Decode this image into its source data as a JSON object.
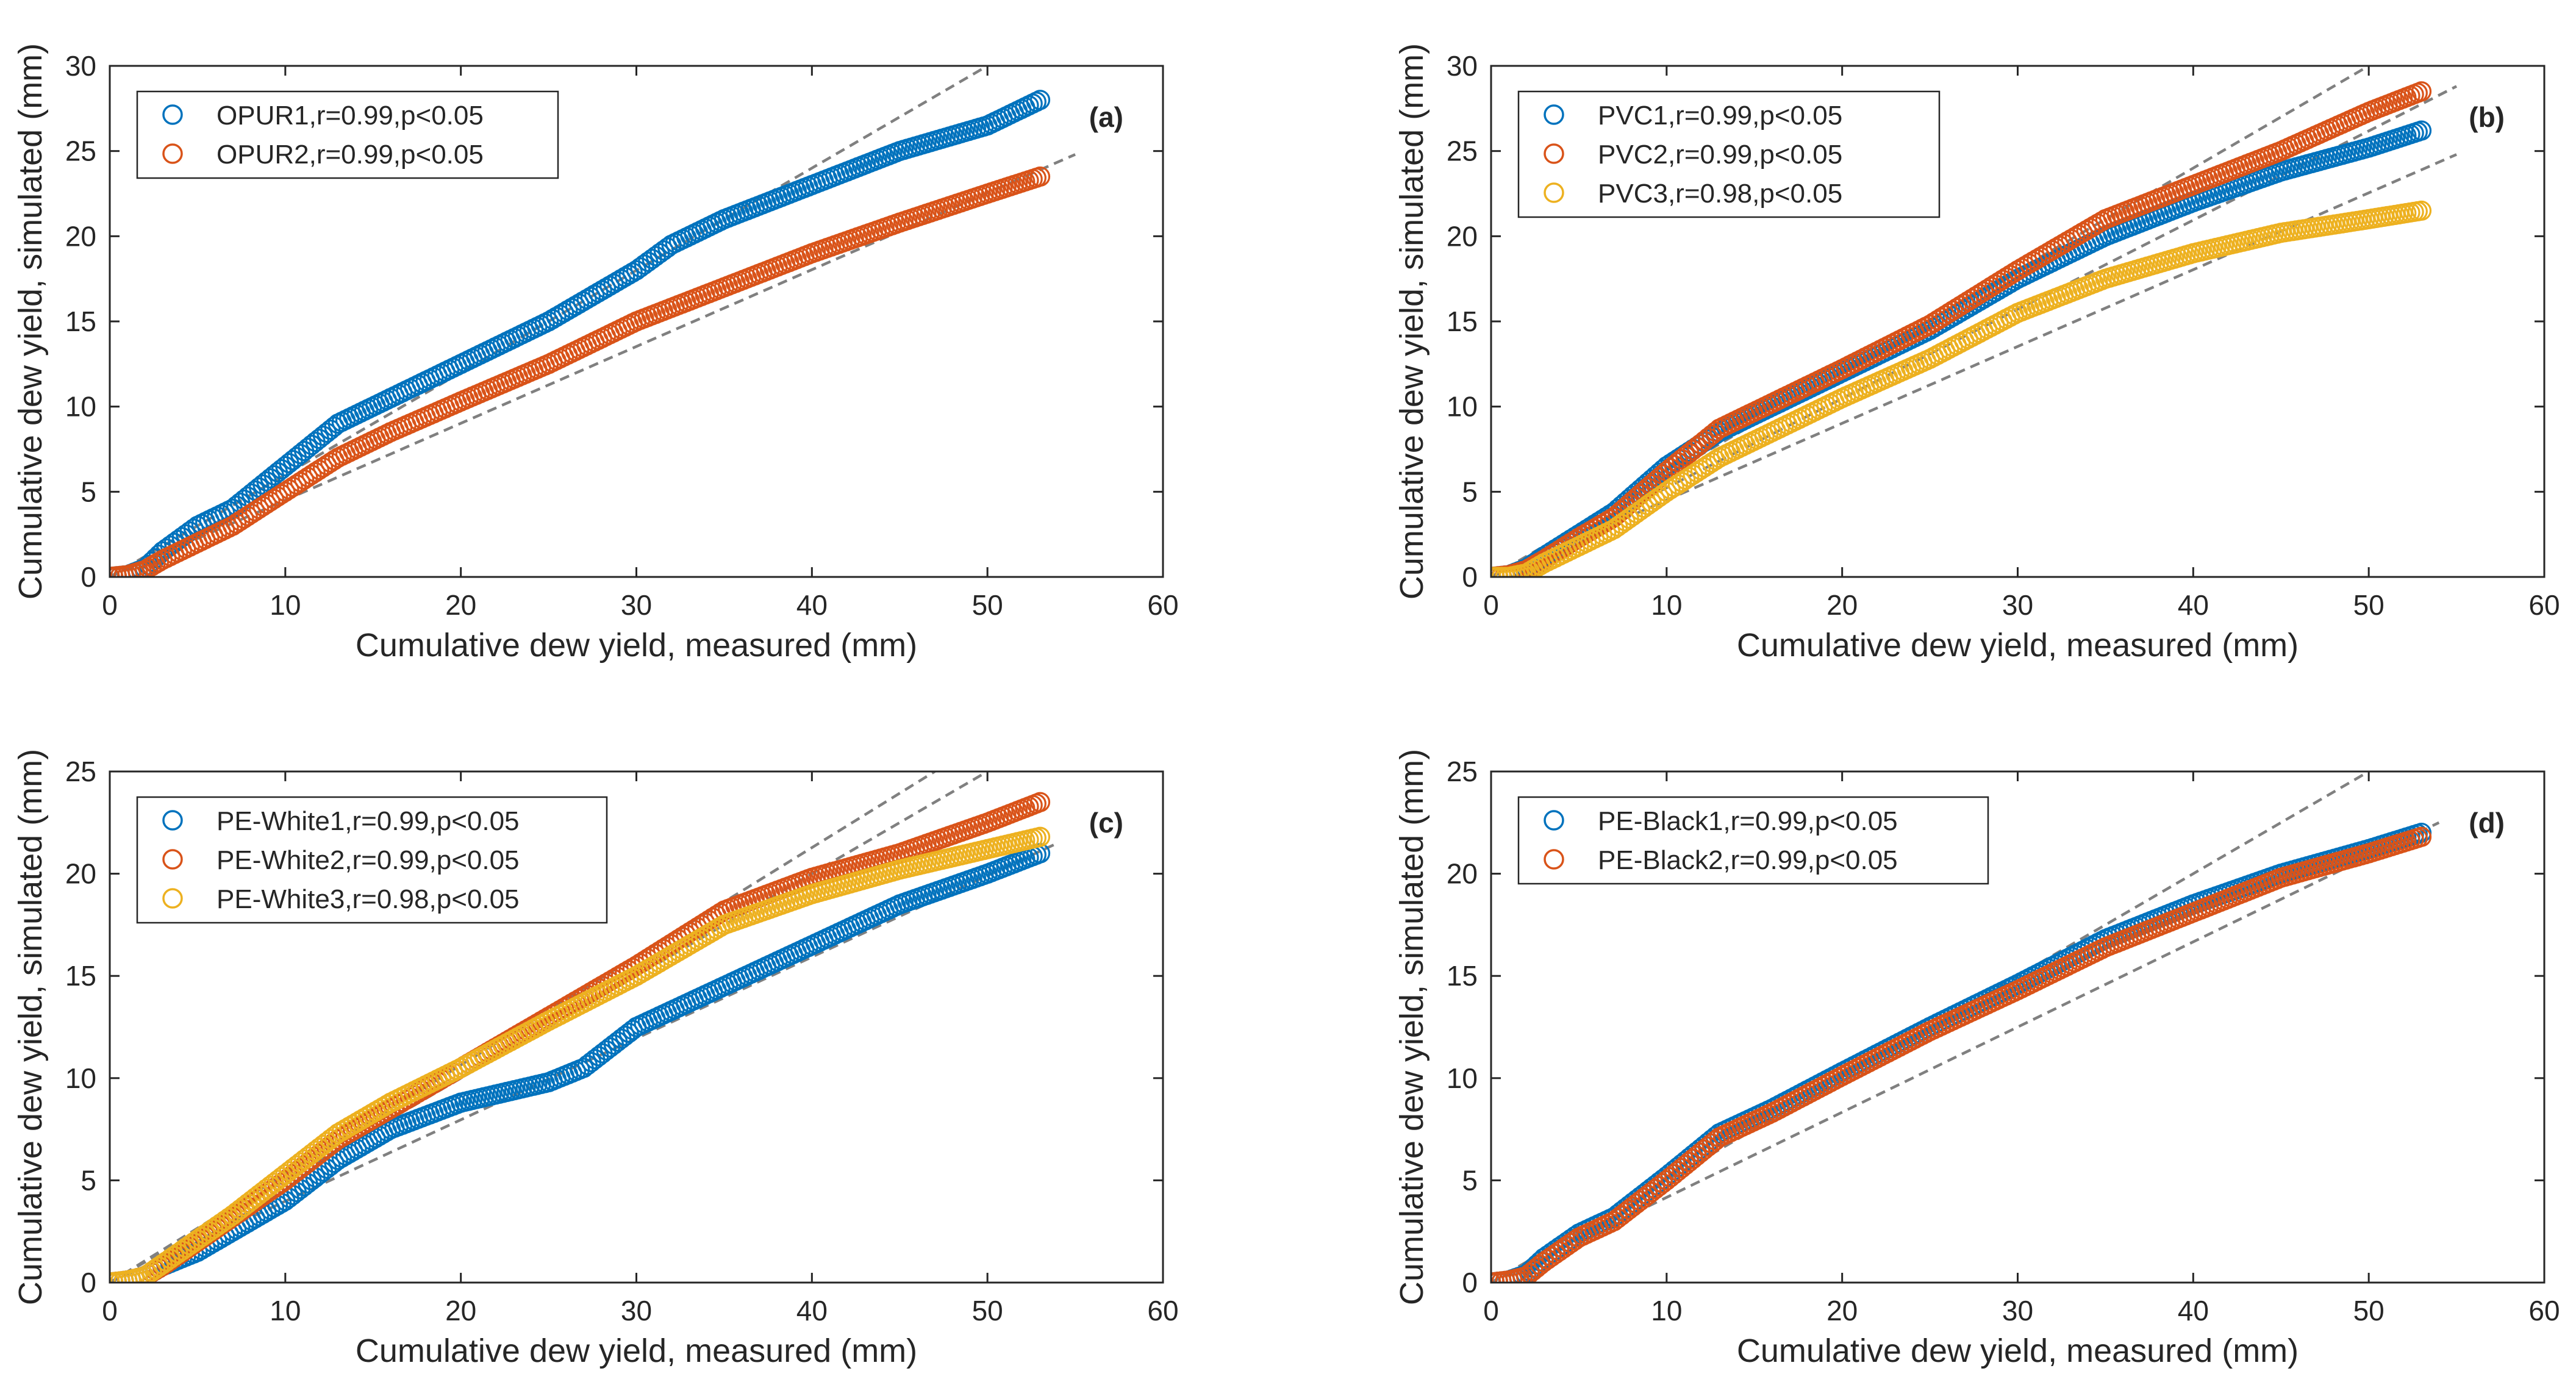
{
  "figure": {
    "colors": {
      "blue": "#0072BD",
      "orange": "#D95319",
      "yellow": "#EDB120",
      "reference_line": "#808080",
      "axis": "#262626"
    }
  },
  "chart_data": [
    {
      "type": "scatter",
      "panel_label": "(a)",
      "xlabel": "Cumulative dew yield, measured (mm)",
      "ylabel": "Cumulative dew yield, simulated (mm)",
      "xlim": [
        0,
        60
      ],
      "ylim": [
        0,
        30
      ],
      "xticks": [
        0,
        10,
        20,
        30,
        40,
        50,
        60
      ],
      "yticks": [
        0,
        5,
        10,
        15,
        20,
        25,
        30
      ],
      "grid": false,
      "legend_position": "top-left",
      "reference_lines": [
        {
          "style": "dashed",
          "x": [
            0,
            50
          ],
          "y": [
            0,
            30
          ]
        },
        {
          "style": "dashed",
          "x": [
            0,
            55
          ],
          "y": [
            0,
            24.8
          ]
        }
      ],
      "series": [
        {
          "name": "OPUR1,r=0.99,p<0.05",
          "color": "#0072BD",
          "x": [
            0,
            1,
            2,
            3,
            5,
            7,
            10,
            13,
            16,
            20,
            25,
            30,
            32,
            35,
            40,
            42,
            45,
            50,
            53
          ],
          "y": [
            0,
            0.1,
            0.5,
            1.5,
            3,
            4,
            6.5,
            9,
            10.5,
            12.5,
            15,
            18,
            19.5,
            21,
            23,
            23.8,
            25,
            26.5,
            28
          ]
        },
        {
          "name": "OPUR2,r=0.99,p<0.05",
          "color": "#D95319",
          "x": [
            0,
            1,
            2,
            3,
            5,
            7,
            10,
            13,
            16,
            20,
            25,
            30,
            35,
            40,
            45,
            50,
            53
          ],
          "y": [
            0,
            0.1,
            0.4,
            1,
            2,
            3,
            5,
            7,
            8.5,
            10.3,
            12.5,
            15,
            17,
            19,
            20.8,
            22.5,
            23.5
          ]
        }
      ]
    },
    {
      "type": "scatter",
      "panel_label": "(b)",
      "xlabel": "Cumulative dew yield, measured (mm)",
      "ylabel": "Cumulative dew yield, simulated (mm)",
      "xlim": [
        0,
        60
      ],
      "ylim": [
        0,
        30
      ],
      "xticks": [
        0,
        10,
        20,
        30,
        40,
        50,
        60
      ],
      "yticks": [
        0,
        5,
        10,
        15,
        20,
        25,
        30
      ],
      "grid": false,
      "legend_position": "top-left",
      "reference_lines": [
        {
          "style": "dashed",
          "x": [
            0,
            50
          ],
          "y": [
            0,
            30
          ]
        },
        {
          "style": "dashed",
          "x": [
            0,
            55
          ],
          "y": [
            0,
            24.8
          ]
        },
        {
          "style": "dashed",
          "x": [
            0,
            55
          ],
          "y": [
            0,
            28.8
          ]
        }
      ],
      "series": [
        {
          "name": "PVC1,r=0.99,p<0.05",
          "color": "#0072BD",
          "x": [
            0,
            1,
            2,
            3,
            5,
            7,
            10,
            13,
            16,
            20,
            25,
            30,
            35,
            40,
            45,
            50,
            53
          ],
          "y": [
            0,
            0.1,
            0.5,
            1.2,
            2.5,
            3.8,
            6.5,
            8.5,
            10,
            12,
            14.5,
            17.5,
            20,
            22,
            23.8,
            25.2,
            26.2
          ]
        },
        {
          "name": "PVC2,r=0.99,p<0.05",
          "color": "#D95319",
          "x": [
            0,
            1,
            2,
            3,
            5,
            7,
            10,
            13,
            16,
            20,
            25,
            30,
            35,
            40,
            45,
            50,
            53
          ],
          "y": [
            0,
            0.1,
            0.4,
            1,
            2.3,
            3.5,
            6.2,
            8.7,
            10.2,
            12.2,
            14.8,
            18,
            21,
            23,
            25,
            27.3,
            28.5
          ]
        },
        {
          "name": "PVC3,r=0.98,p<0.05",
          "color": "#EDB120",
          "x": [
            0,
            1,
            2,
            3,
            5,
            7,
            10,
            13,
            16,
            20,
            25,
            30,
            35,
            40,
            45,
            50,
            53
          ],
          "y": [
            0,
            0,
            0.2,
            0.8,
            1.8,
            2.8,
            5,
            7,
            8.5,
            10.5,
            12.8,
            15.5,
            17.5,
            19,
            20.2,
            21,
            21.5
          ]
        }
      ]
    },
    {
      "type": "scatter",
      "panel_label": "(c)",
      "xlabel": "Cumulative dew yield, measured (mm)",
      "ylabel": "Cumulative dew yield, simulated (mm)",
      "xlim": [
        0,
        60
      ],
      "ylim": [
        0,
        25
      ],
      "xticks": [
        0,
        10,
        20,
        30,
        40,
        50,
        60
      ],
      "yticks": [
        0,
        5,
        10,
        15,
        20,
        25
      ],
      "grid": false,
      "legend_position": "top-left",
      "reference_lines": [
        {
          "style": "dashed",
          "x": [
            0,
            47
          ],
          "y": [
            0,
            25
          ]
        },
        {
          "style": "dashed",
          "x": [
            0,
            50
          ],
          "y": [
            0,
            25
          ]
        },
        {
          "style": "dashed",
          "x": [
            0,
            54
          ],
          "y": [
            0,
            21.5
          ]
        }
      ],
      "series": [
        {
          "name": "PE-White1,r=0.99,p<0.05",
          "color": "#0072BD",
          "x": [
            0,
            1,
            2,
            3,
            5,
            7,
            10,
            13,
            16,
            20,
            25,
            27,
            30,
            35,
            40,
            45,
            50,
            53
          ],
          "y": [
            0,
            0.1,
            0.3,
            0.8,
            1.5,
            2.5,
            4,
            6,
            7.5,
            8.8,
            9.8,
            10.5,
            12.5,
            14.5,
            16.5,
            18.5,
            20,
            21
          ]
        },
        {
          "name": "PE-White2,r=0.99,p<0.05",
          "color": "#D95319",
          "x": [
            0,
            1,
            2,
            3,
            5,
            7,
            10,
            13,
            16,
            20,
            25,
            30,
            35,
            40,
            45,
            50,
            53
          ],
          "y": [
            0,
            0.1,
            0.3,
            0.8,
            2,
            3.2,
            5,
            7,
            8.5,
            10.5,
            13,
            15.5,
            18.2,
            19.8,
            21,
            22.5,
            23.5
          ]
        },
        {
          "name": "PE-White3,r=0.98,p<0.05",
          "color": "#EDB120",
          "x": [
            0,
            1,
            2,
            3,
            5,
            7,
            10,
            13,
            16,
            20,
            25,
            30,
            35,
            40,
            45,
            50,
            53
          ],
          "y": [
            0,
            0.1,
            0.3,
            0.9,
            2.1,
            3.3,
            5.3,
            7.3,
            8.8,
            10.5,
            12.8,
            15,
            17.5,
            19,
            20.2,
            21.2,
            21.8
          ]
        }
      ]
    },
    {
      "type": "scatter",
      "panel_label": "(d)",
      "xlabel": "Cumulative dew yield, measured (mm)",
      "ylabel": "Cumulative dew yield, simulated (mm)",
      "xlim": [
        0,
        60
      ],
      "ylim": [
        0,
        25
      ],
      "xticks": [
        0,
        10,
        20,
        30,
        40,
        50,
        60
      ],
      "yticks": [
        0,
        5,
        10,
        15,
        20,
        25
      ],
      "grid": false,
      "legend_position": "top-left",
      "reference_lines": [
        {
          "style": "dashed",
          "x": [
            0,
            50
          ],
          "y": [
            0,
            25
          ]
        },
        {
          "style": "dashed",
          "x": [
            0,
            54
          ],
          "y": [
            0,
            22.5
          ]
        }
      ],
      "series": [
        {
          "name": "PE-Black1,r=0.99,p<0.05",
          "color": "#0072BD",
          "x": [
            0,
            1,
            2,
            3,
            5,
            7,
            10,
            13,
            16,
            20,
            25,
            30,
            35,
            40,
            45,
            50,
            53
          ],
          "y": [
            0,
            0.1,
            0.4,
            1.2,
            2.4,
            3.2,
            5.2,
            7.3,
            8.5,
            10.3,
            12.5,
            14.6,
            16.8,
            18.5,
            20,
            21.2,
            22
          ]
        },
        {
          "name": "PE-Black2,r=0.99,p<0.05",
          "color": "#D95319",
          "x": [
            0,
            1,
            2,
            3,
            5,
            7,
            10,
            13,
            16,
            20,
            25,
            30,
            35,
            40,
            45,
            50,
            53
          ],
          "y": [
            0,
            0.1,
            0.3,
            1,
            2.2,
            3,
            5,
            7.1,
            8.3,
            10.1,
            12.3,
            14.3,
            16.4,
            18.1,
            19.8,
            21,
            21.8
          ]
        }
      ]
    }
  ]
}
